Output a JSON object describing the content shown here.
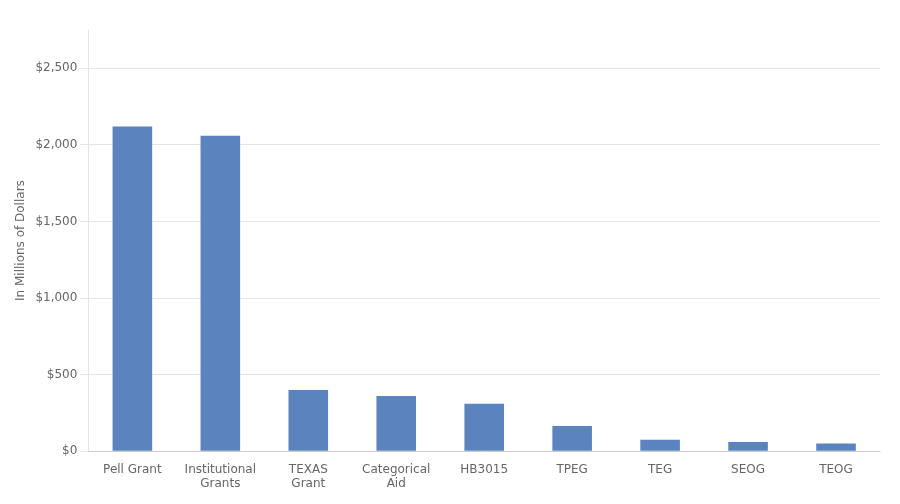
{
  "chart_data": {
    "type": "bar",
    "categories": [
      "Pell Grant",
      "Institutional\nGrants",
      "TEXAS\nGrant",
      "Categorical\nAid",
      "HB3015",
      "TPEG",
      "TEG",
      "SEOG",
      "TEOG"
    ],
    "values": [
      2120,
      2060,
      400,
      360,
      310,
      165,
      75,
      60,
      50
    ],
    "color": "#5b83be",
    "ylabel": "In Millions of Dollars",
    "ylim": [
      0,
      2750
    ],
    "yticks": [
      {
        "value": 0,
        "label": "$0"
      },
      {
        "value": 500,
        "label": "$500"
      },
      {
        "value": 1000,
        "label": "$1,000"
      },
      {
        "value": 1500,
        "label": "$1,500"
      },
      {
        "value": 2000,
        "label": "$2,000"
      },
      {
        "value": 2500,
        "label": "$2,500"
      }
    ],
    "grid": true
  }
}
